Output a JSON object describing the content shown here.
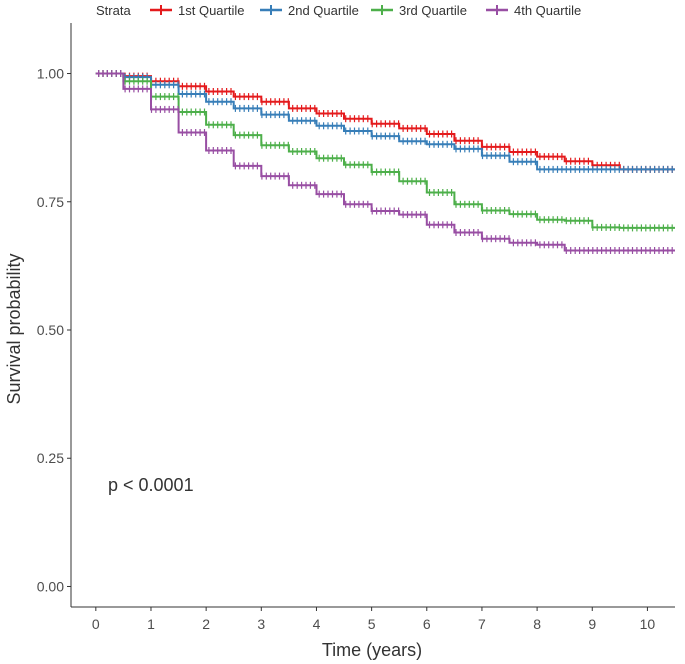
{
  "chart_data": {
    "type": "line",
    "subtype": "kaplan-meier",
    "title": "",
    "xlabel": "Time (years)",
    "ylabel": "Survival probability",
    "xlim": [
      -0.45,
      10.5
    ],
    "ylim": [
      -0.04,
      1.04
    ],
    "x_ticks": [
      0,
      1,
      2,
      3,
      4,
      5,
      6,
      7,
      8,
      9,
      10
    ],
    "y_ticks": [
      0.0,
      0.25,
      0.5,
      0.75,
      1.0
    ],
    "y_tick_labels": [
      "0.00",
      "0.25",
      "0.50",
      "0.75",
      "1.00"
    ],
    "legend": {
      "title": "Strata",
      "position": "top"
    },
    "annotation": "p < 0.0001",
    "grid": false,
    "series": [
      {
        "name": "1st Quartile",
        "color": "#E41A1C",
        "x": [
          0,
          0.5,
          1,
          1.5,
          2,
          2.5,
          3,
          3.5,
          4,
          4.5,
          5,
          5.5,
          6,
          6.5,
          7,
          7.5,
          8,
          8.5,
          9,
          9.5,
          10,
          10.5
        ],
        "values": [
          1.0,
          0.995,
          0.985,
          0.975,
          0.965,
          0.955,
          0.945,
          0.932,
          0.922,
          0.912,
          0.902,
          0.893,
          0.882,
          0.869,
          0.857,
          0.847,
          0.838,
          0.829,
          0.821,
          0.813,
          0.813,
          0.813
        ]
      },
      {
        "name": "2nd Quartile",
        "color": "#377EB8",
        "x": [
          0,
          0.5,
          1,
          1.5,
          2,
          2.5,
          3,
          3.5,
          4,
          4.5,
          5,
          5.5,
          6,
          6.5,
          7,
          7.5,
          8,
          8.5,
          9,
          9.5,
          10,
          10.5
        ],
        "values": [
          1.0,
          0.993,
          0.978,
          0.96,
          0.945,
          0.932,
          0.92,
          0.908,
          0.898,
          0.888,
          0.878,
          0.868,
          0.862,
          0.853,
          0.84,
          0.828,
          0.813,
          0.813,
          0.813,
          0.813,
          0.813,
          0.813
        ]
      },
      {
        "name": "3rd Quartile",
        "color": "#4DAF4A",
        "x": [
          0,
          0.5,
          1,
          1.5,
          2,
          2.5,
          3,
          3.5,
          4,
          4.5,
          5,
          5.5,
          6,
          6.5,
          7,
          7.5,
          8,
          8.5,
          9,
          9.5,
          10,
          10.5
        ],
        "values": [
          1.0,
          0.985,
          0.955,
          0.925,
          0.9,
          0.88,
          0.86,
          0.848,
          0.835,
          0.822,
          0.808,
          0.79,
          0.768,
          0.745,
          0.733,
          0.726,
          0.715,
          0.713,
          0.7,
          0.699,
          0.699,
          0.699
        ]
      },
      {
        "name": "4th Quartile",
        "color": "#984EA3",
        "x": [
          0,
          0.5,
          1,
          1.5,
          2,
          2.5,
          3,
          3.5,
          4,
          4.5,
          5,
          5.5,
          6,
          6.5,
          7,
          7.5,
          8,
          8.5,
          9,
          9.5,
          10,
          10.5
        ],
        "values": [
          1.0,
          0.97,
          0.93,
          0.885,
          0.85,
          0.82,
          0.8,
          0.782,
          0.765,
          0.745,
          0.732,
          0.725,
          0.705,
          0.69,
          0.678,
          0.67,
          0.666,
          0.655,
          0.655,
          0.655,
          0.655,
          0.655
        ]
      }
    ]
  }
}
